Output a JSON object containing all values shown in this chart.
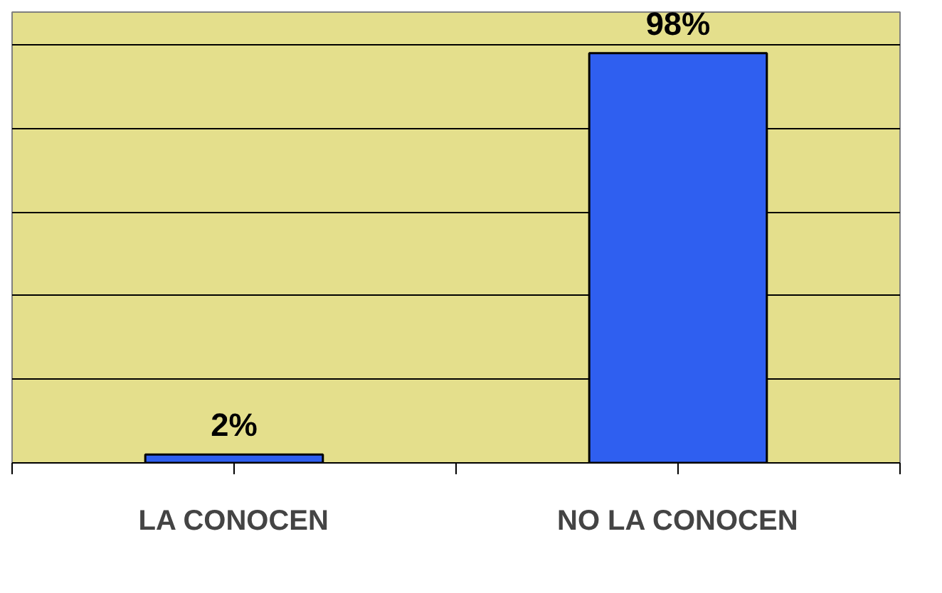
{
  "chart_data": {
    "type": "bar",
    "categories": [
      "LA CONOCEN",
      "NO LA CONOCEN"
    ],
    "values": [
      2,
      98
    ],
    "value_labels": [
      "2%",
      "98%"
    ],
    "colors": [
      "#2f5ff0",
      "#2f5ff0"
    ],
    "grid": "y",
    "tick_labels": "x"
  }
}
